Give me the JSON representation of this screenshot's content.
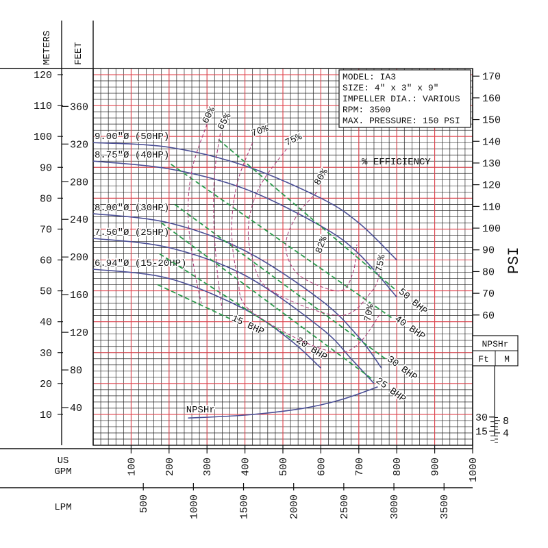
{
  "info_box": {
    "lines": [
      "MODEL: IA3",
      "SIZE: 4\" x 3\" x 9\"",
      "IMPELLER DIA.: VARIOUS",
      "RPM: 3500",
      "MAX. PRESSURE: 150 PSI"
    ]
  },
  "axes": {
    "meters_label": "METERS",
    "feet_label": "FEET",
    "psi_label": "PSI",
    "gpm_label_1": "US",
    "gpm_label_2": "GPM",
    "lpm_label": "LPM",
    "npshr_box_title": "NPSHr",
    "npshr_ft_label": "Ft",
    "npshr_m_label": "M",
    "meters_ticks": [
      10,
      20,
      30,
      40,
      50,
      60,
      70,
      80,
      90,
      100,
      110,
      120
    ],
    "feet_ticks": [
      40,
      80,
      120,
      160,
      200,
      240,
      280,
      320,
      360
    ],
    "psi_ticks": [
      60,
      70,
      80,
      90,
      100,
      110,
      120,
      130,
      140,
      150,
      160,
      170
    ],
    "gpm_ticks": [
      100,
      200,
      300,
      400,
      500,
      600,
      700,
      800,
      900,
      1000
    ],
    "lpm_ticks": [
      500,
      1000,
      1500,
      2000,
      2500,
      3000,
      3500
    ],
    "npshr_ft_ticks": [
      15,
      30
    ],
    "npshr_m_ticks": [
      4,
      8
    ]
  },
  "chart_data": {
    "type": "line",
    "title": "",
    "xlabel": "US GPM",
    "ylabel": "FEET",
    "xlim": [
      0,
      1000
    ],
    "ylim_meters": [
      0,
      122
    ],
    "efficiency_label": "% EFFICIENCY",
    "head_curves": [
      {
        "name": "9.00\"Ø (50HP)",
        "x": [
          0,
          200,
          400,
          600,
          700,
          800
        ],
        "y_m": [
          98,
          96.5,
          90.5,
          80,
          72,
          60
        ]
      },
      {
        "name": "8.75\"Ø (40HP)",
        "x": [
          0,
          200,
          400,
          600,
          700,
          800
        ],
        "y_m": [
          92,
          89.5,
          83,
          71,
          62,
          48
        ]
      },
      {
        "name": "8.00\"Ø (30HP)",
        "x": [
          0,
          200,
          400,
          600,
          700,
          760
        ],
        "y_m": [
          75,
          72,
          63,
          47,
          35,
          25
        ]
      },
      {
        "name": "7.50\"Ø (25HP)",
        "x": [
          0,
          200,
          400,
          600,
          680,
          740
        ],
        "y_m": [
          67,
          64,
          55,
          38,
          28,
          20
        ]
      },
      {
        "name": "6.94\"Ø (15-20HP)",
        "x": [
          0,
          200,
          400,
          520,
          600
        ],
        "y_m": [
          57,
          54,
          44,
          34,
          25
        ]
      }
    ],
    "bhp_lines": [
      {
        "name": "50 BHP",
        "x": [
          330,
          800
        ],
        "y_m": [
          99,
          50
        ]
      },
      {
        "name": "40 BHP",
        "x": [
          205,
          790
        ],
        "y_m": [
          91,
          41
        ]
      },
      {
        "name": "30 BHP",
        "x": [
          215,
          770
        ],
        "y_m": [
          78,
          28
        ]
      },
      {
        "name": "25 BHP",
        "x": [
          180,
          740
        ],
        "y_m": [
          72,
          21
        ]
      },
      {
        "name": "20 BHP",
        "x": [
          175,
          530
        ],
        "y_m": [
          62,
          34
        ]
      },
      {
        "name": "15 BHP",
        "x": [
          170,
          360
        ],
        "y_m": [
          52,
          41
        ]
      }
    ],
    "efficiency_contours": [
      {
        "name": "60%",
        "x": [
          300,
          262,
          250,
          265,
          285
        ],
        "y_m": [
          104,
          90,
          75,
          58,
          46
        ]
      },
      {
        "name": "65%",
        "x": [
          335,
          320,
          318,
          328,
          340
        ],
        "y_m": [
          101,
          88,
          72,
          55,
          44
        ]
      },
      {
        "name": "70%",
        "x": [
          420,
          380,
          365,
          380,
          420,
          650,
          760
        ],
        "y_m": [
          98,
          85,
          70,
          55,
          43,
          30,
          43
        ]
      },
      {
        "name": "75%",
        "x": [
          510,
          440,
          410,
          420,
          470,
          650,
          735,
          755
        ],
        "y_m": [
          96,
          84,
          72,
          60,
          50,
          42,
          50,
          56
        ]
      },
      {
        "name": "80%",
        "x": [
          590,
          540,
          510,
          515,
          555,
          650,
          685,
          695
        ],
        "y_m": [
          82,
          75,
          67,
          60,
          54,
          50,
          56,
          65
        ]
      }
    ],
    "efficiency_labels": [
      "60%",
      "65%",
      "70%",
      "75%",
      "80%",
      "82%",
      "75%",
      "70%"
    ],
    "npshr_curve": {
      "name": "NPSHr",
      "x": [
        250,
        400,
        550,
        650,
        750
      ],
      "y_ft": [
        29,
        32,
        39,
        48,
        62
      ]
    }
  }
}
